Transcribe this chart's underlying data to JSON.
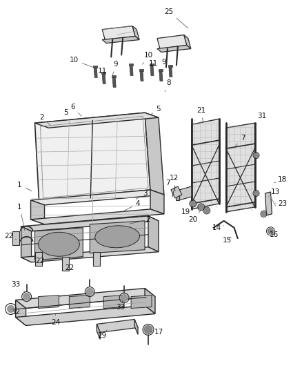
{
  "background_color": "#ffffff",
  "line_color": "#2a2a2a",
  "gray_fill": "#e8e8e8",
  "dark_fill": "#c8c8c8",
  "figsize": [
    4.38,
    5.33
  ],
  "dpi": 100
}
